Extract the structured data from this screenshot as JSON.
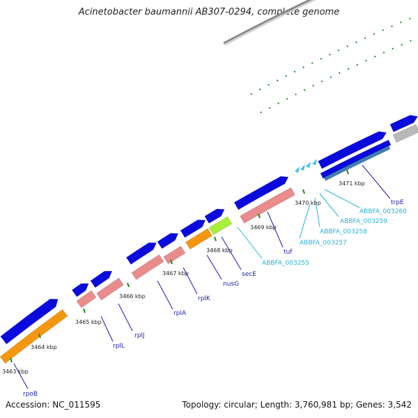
{
  "title": "Acinetobacter baumannii AB307-0294, complete genome",
  "footer": {
    "accession": "Accession: NC_011595",
    "summary": "Topology: circular; Length: 3,760,981 bp; Genes: 3,542"
  },
  "ticks": [
    "3463 kbp",
    "3464 kbp",
    "3465 kbp",
    "3466 kbp",
    "3467 kbp",
    "3468 kbp",
    "3469 kbp",
    "3470 kbp",
    "3471 kbp"
  ],
  "genes": [
    "rpoB",
    "rplL",
    "rplJ",
    "rplA",
    "rplK",
    "nusG",
    "secE",
    "ABBFA_003255",
    "tuf",
    "ABBFA_003257",
    "ABBFA_003258",
    "ABBFA_003259",
    "ABBFA_003260",
    "trpE"
  ],
  "colors": {
    "cds": "#0a0adc",
    "trna_like": "#e98c8c",
    "orange": "#f5960f",
    "green": "#a8ee3a",
    "cyan": "#3cc2ee",
    "teal": "#3f7fb3",
    "grey": "#b8b8b8",
    "tick": "#1f8c1f",
    "label": "#1a1aa8",
    "label_cyan": "#27b3d6"
  }
}
